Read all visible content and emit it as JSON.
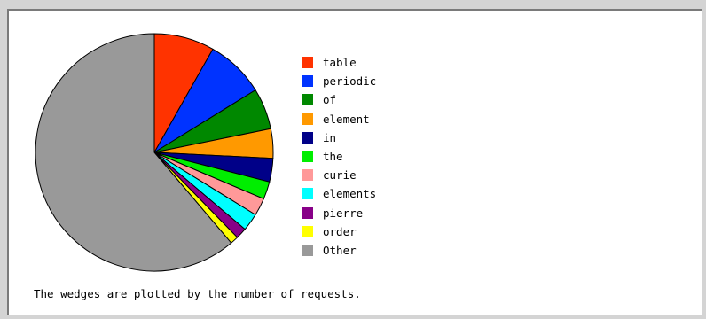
{
  "chart_data": {
    "type": "pie",
    "categories": [
      "table",
      "periodic",
      "of",
      "element",
      "in",
      "the",
      "curie",
      "elements",
      "pierre",
      "order",
      "Other"
    ],
    "values": [
      8.2,
      8.0,
      5.6,
      4.0,
      3.2,
      2.4,
      2.4,
      2.4,
      1.5,
      1.1,
      61.2
    ],
    "colors": [
      "#ff3300",
      "#0033ff",
      "#008800",
      "#ff9900",
      "#000088",
      "#00ee00",
      "#ff9999",
      "#00ffff",
      "#880088",
      "#ffff00",
      "#999999"
    ],
    "start_angle_deg": 0,
    "direction": "clockwise",
    "legend_position": "right"
  },
  "caption": "The wedges are plotted by the number of requests."
}
